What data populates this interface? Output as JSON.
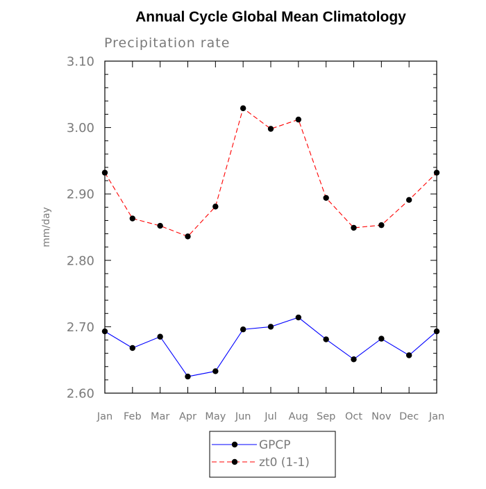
{
  "chart_data": {
    "type": "line",
    "title": "Annual Cycle Global Mean Climatology",
    "subtitle": "Precipitation rate",
    "xlabel": "",
    "ylabel": "mm/day",
    "ylim": [
      2.6,
      3.1
    ],
    "yticks": [
      "2.60",
      "2.70",
      "2.80",
      "2.90",
      "3.00",
      "3.10"
    ],
    "categories": [
      "Jan",
      "Feb",
      "Mar",
      "Apr",
      "May",
      "Jun",
      "Jul",
      "Aug",
      "Sep",
      "Oct",
      "Nov",
      "Dec",
      "Jan"
    ],
    "grid": false,
    "legend_position": "bottom-center",
    "series": [
      {
        "name": "GPCP",
        "color": "#0000ff",
        "dash": "solid",
        "values": [
          2.693,
          2.668,
          2.685,
          2.625,
          2.633,
          2.696,
          2.7,
          2.714,
          2.681,
          2.651,
          2.682,
          2.657,
          2.693
        ]
      },
      {
        "name": "zt0 (1-1)",
        "color": "#ff0000",
        "dash": "dashed",
        "values": [
          2.932,
          2.863,
          2.852,
          2.836,
          2.881,
          3.029,
          2.998,
          3.012,
          2.894,
          2.849,
          2.853,
          2.891,
          2.932
        ]
      }
    ]
  }
}
